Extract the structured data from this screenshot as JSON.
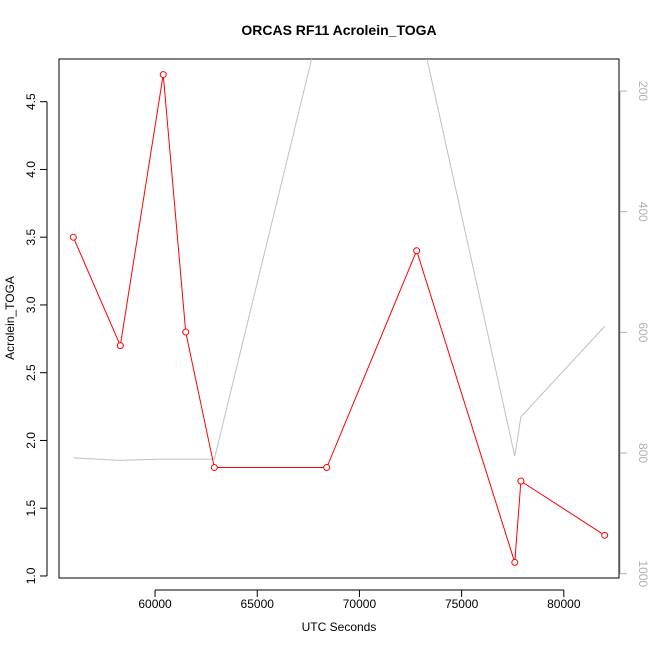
{
  "chart_data": {
    "type": "line",
    "title": "ORCAS RF11 Acrolein_TOGA",
    "xlabel": "UTC Seconds",
    "ylabel": "Acrolein_TOGA",
    "xlim": [
      55300,
      82700
    ],
    "ylim": [
      0.985,
      4.815
    ],
    "x_ticks": [
      60000,
      65000,
      70000,
      75000,
      80000
    ],
    "x_tick_labels": [
      "60000",
      "65000",
      "70000",
      "75000",
      "80000"
    ],
    "y_ticks": [
      1.0,
      1.5,
      2.0,
      2.5,
      3.0,
      3.5,
      4.0,
      4.5
    ],
    "y_tick_labels": [
      "1.0",
      "1.5",
      "2.0",
      "2.5",
      "3.0",
      "3.5",
      "4.0",
      "4.5"
    ],
    "grid": false,
    "series": [
      {
        "color": "#ff0000",
        "marker": "open-circle",
        "x": [
          56000,
          58300,
          60400,
          61500,
          62900,
          68400,
          72800,
          77600,
          77900,
          82000
        ],
        "y": [
          3.5,
          2.7,
          4.7,
          2.8,
          1.8,
          1.8,
          3.4,
          1.1,
          1.7,
          1.3
        ]
      },
      {
        "color": "#c0c0c0",
        "marker": "none",
        "axis": "right",
        "x": [
          56000,
          58300,
          60400,
          61500,
          62900,
          68000,
          73000,
          77600,
          77900,
          82000
        ],
        "y": [
          808,
          812,
          810,
          810,
          810,
          100,
          100,
          805,
          740,
          590
        ]
      }
    ],
    "right_axis": {
      "ylim": [
        1007,
        147
      ],
      "ticks": [
        200,
        400,
        600,
        800,
        1000
      ],
      "tick_labels": [
        "200",
        "400",
        "600",
        "800",
        "1000"
      ]
    }
  }
}
